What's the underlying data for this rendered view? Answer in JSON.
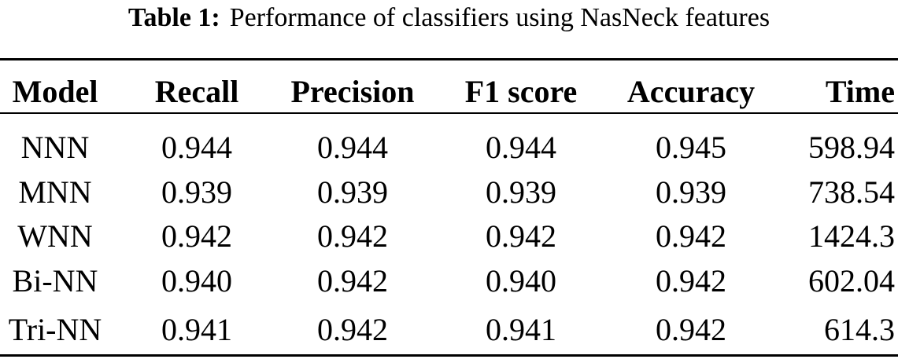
{
  "caption": {
    "label": "Table 1:",
    "text": "Performance of classifiers using NasNeck features"
  },
  "table": {
    "header": [
      "Model",
      "Recall",
      "Precision",
      "F1 score",
      "Accuracy",
      "Time"
    ],
    "rows": [
      [
        "NNN",
        "0.944",
        "0.944",
        "0.944",
        "0.945",
        "598.94"
      ],
      [
        "MNN",
        "0.939",
        "0.939",
        "0.939",
        "0.939",
        "738.54"
      ],
      [
        "WNN",
        "0.942",
        "0.942",
        "0.942",
        "0.942",
        "1424.3"
      ],
      [
        "Bi-NN",
        "0.940",
        "0.942",
        "0.940",
        "0.942",
        "602.04"
      ],
      [
        "Tri-NN",
        "0.941",
        "0.942",
        "0.941",
        "0.942",
        "614.3"
      ]
    ]
  }
}
